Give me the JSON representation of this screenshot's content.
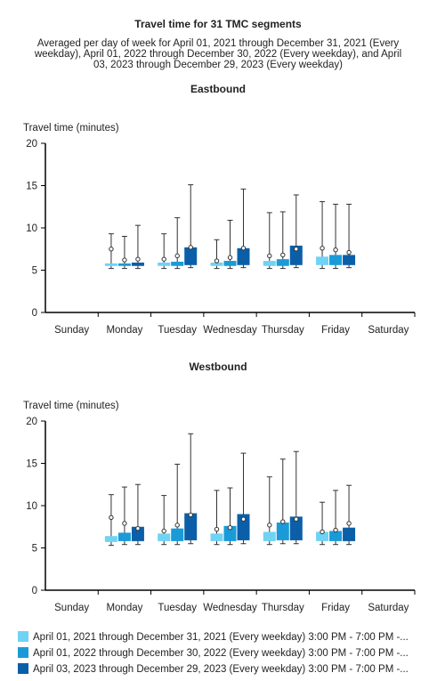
{
  "title": "Travel time for 31 TMC segments",
  "subtitle_lines": [
    "Averaged per day of week for April 01, 2021 through December 31, 2021 (Every",
    "weekday), April 01, 2022 through December 30, 2022 (Every weekday), and April",
    "03, 2023 through December 29, 2023 (Every weekday)"
  ],
  "legend": [
    "April 01, 2021 through December 31, 2021 (Every weekday) 3:00 PM - 7:00 PM -...",
    "April 01, 2022 through December 30, 2022 (Every weekday) 3:00 PM - 7:00 PM -...",
    "April 03, 2023 through December 29, 2023 (Every weekday) 3:00 PM - 7:00 PM -..."
  ],
  "series_colors": [
    "#6fd3f5",
    "#1a9bd8",
    "#0b5fa8"
  ],
  "chart_data": [
    {
      "type": "boxplot",
      "title": "Eastbound",
      "ylabel": "Travel time (minutes)",
      "ylim": [
        0,
        20
      ],
      "yticks": [
        0,
        5,
        10,
        15,
        20
      ],
      "categories": [
        "Sunday",
        "Monday",
        "Tuesday",
        "Wednesday",
        "Thursday",
        "Friday",
        "Saturday"
      ],
      "series": [
        {
          "values": [
            null,
            {
              "min": 5.2,
              "q1": 5.5,
              "median": 5.6,
              "q3": 5.8,
              "max": 9.3,
              "mean": 7.5
            },
            {
              "min": 5.2,
              "q1": 5.5,
              "median": 5.7,
              "q3": 5.9,
              "max": 9.3,
              "mean": 6.3
            },
            {
              "min": 5.2,
              "q1": 5.5,
              "median": 5.7,
              "q3": 5.9,
              "max": 8.6,
              "mean": 6.1
            },
            {
              "min": 5.2,
              "q1": 5.5,
              "median": 5.8,
              "q3": 6.1,
              "max": 11.8,
              "mean": 6.7
            },
            {
              "min": 5.2,
              "q1": 5.6,
              "median": 6.2,
              "q3": 6.6,
              "max": 13.1,
              "mean": 7.6
            },
            null
          ]
        },
        {
          "values": [
            null,
            {
              "min": 5.2,
              "q1": 5.5,
              "median": 5.6,
              "q3": 5.8,
              "max": 9.0,
              "mean": 6.2
            },
            {
              "min": 5.2,
              "q1": 5.5,
              "median": 5.8,
              "q3": 6.0,
              "max": 11.2,
              "mean": 6.7
            },
            {
              "min": 5.2,
              "q1": 5.5,
              "median": 5.8,
              "q3": 6.1,
              "max": 10.9,
              "mean": 6.5
            },
            {
              "min": 5.2,
              "q1": 5.5,
              "median": 5.9,
              "q3": 6.3,
              "max": 11.9,
              "mean": 6.8
            },
            {
              "min": 5.2,
              "q1": 5.6,
              "median": 6.2,
              "q3": 6.8,
              "max": 12.8,
              "mean": 7.4
            },
            null
          ]
        },
        {
          "values": [
            null,
            {
              "min": 5.2,
              "q1": 5.5,
              "median": 5.7,
              "q3": 5.9,
              "max": 10.3,
              "mean": 6.3
            },
            {
              "min": 5.3,
              "q1": 5.6,
              "median": 7.5,
              "q3": 7.7,
              "max": 15.1,
              "mean": 7.7
            },
            {
              "min": 5.3,
              "q1": 5.6,
              "median": 7.3,
              "q3": 7.6,
              "max": 14.6,
              "mean": 7.6
            },
            {
              "min": 5.3,
              "q1": 5.6,
              "median": 7.3,
              "q3": 7.9,
              "max": 13.9,
              "mean": 7.5
            },
            {
              "min": 5.3,
              "q1": 5.6,
              "median": 6.4,
              "q3": 6.8,
              "max": 12.8,
              "mean": 7.1
            },
            null
          ]
        }
      ]
    },
    {
      "type": "boxplot",
      "title": "Westbound",
      "ylabel": "Travel time (minutes)",
      "ylim": [
        0,
        20
      ],
      "yticks": [
        0,
        5,
        10,
        15,
        20
      ],
      "categories": [
        "Sunday",
        "Monday",
        "Tuesday",
        "Wednesday",
        "Thursday",
        "Friday",
        "Saturday"
      ],
      "series": [
        {
          "values": [
            null,
            {
              "min": 5.3,
              "q1": 5.7,
              "median": 6.0,
              "q3": 6.4,
              "max": 11.3,
              "mean": 8.6
            },
            {
              "min": 5.4,
              "q1": 5.8,
              "median": 6.2,
              "q3": 6.7,
              "max": 11.2,
              "mean": 7.0
            },
            {
              "min": 5.4,
              "q1": 5.8,
              "median": 6.2,
              "q3": 6.7,
              "max": 11.8,
              "mean": 7.2
            },
            {
              "min": 5.4,
              "q1": 5.8,
              "median": 6.3,
              "q3": 6.9,
              "max": 13.4,
              "mean": 7.7
            },
            {
              "min": 5.4,
              "q1": 5.8,
              "median": 6.3,
              "q3": 6.9,
              "max": 10.4,
              "mean": 6.9
            },
            null
          ]
        },
        {
          "values": [
            null,
            {
              "min": 5.4,
              "q1": 5.8,
              "median": 6.2,
              "q3": 6.8,
              "max": 12.2,
              "mean": 7.9
            },
            {
              "min": 5.4,
              "q1": 5.8,
              "median": 6.3,
              "q3": 7.3,
              "max": 14.9,
              "mean": 7.7
            },
            {
              "min": 5.4,
              "q1": 5.8,
              "median": 6.5,
              "q3": 7.6,
              "max": 12.1,
              "mean": 7.4
            },
            {
              "min": 5.5,
              "q1": 5.9,
              "median": 6.8,
              "q3": 8.0,
              "max": 15.5,
              "mean": 8.1
            },
            {
              "min": 5.4,
              "q1": 5.8,
              "median": 6.2,
              "q3": 7.0,
              "max": 11.8,
              "mean": 7.1
            },
            null
          ]
        },
        {
          "values": [
            null,
            {
              "min": 5.4,
              "q1": 5.8,
              "median": 6.7,
              "q3": 7.5,
              "max": 12.5,
              "mean": 7.3
            },
            {
              "min": 5.5,
              "q1": 5.9,
              "median": 8.6,
              "q3": 9.1,
              "max": 18.5,
              "mean": 8.9
            },
            {
              "min": 5.5,
              "q1": 5.9,
              "median": 8.3,
              "q3": 9.0,
              "max": 16.2,
              "mean": 8.4
            },
            {
              "min": 5.5,
              "q1": 5.9,
              "median": 8.1,
              "q3": 8.7,
              "max": 16.4,
              "mean": 8.4
            },
            {
              "min": 5.4,
              "q1": 5.8,
              "median": 7.0,
              "q3": 7.4,
              "max": 12.4,
              "mean": 7.9
            },
            null
          ]
        }
      ]
    }
  ]
}
